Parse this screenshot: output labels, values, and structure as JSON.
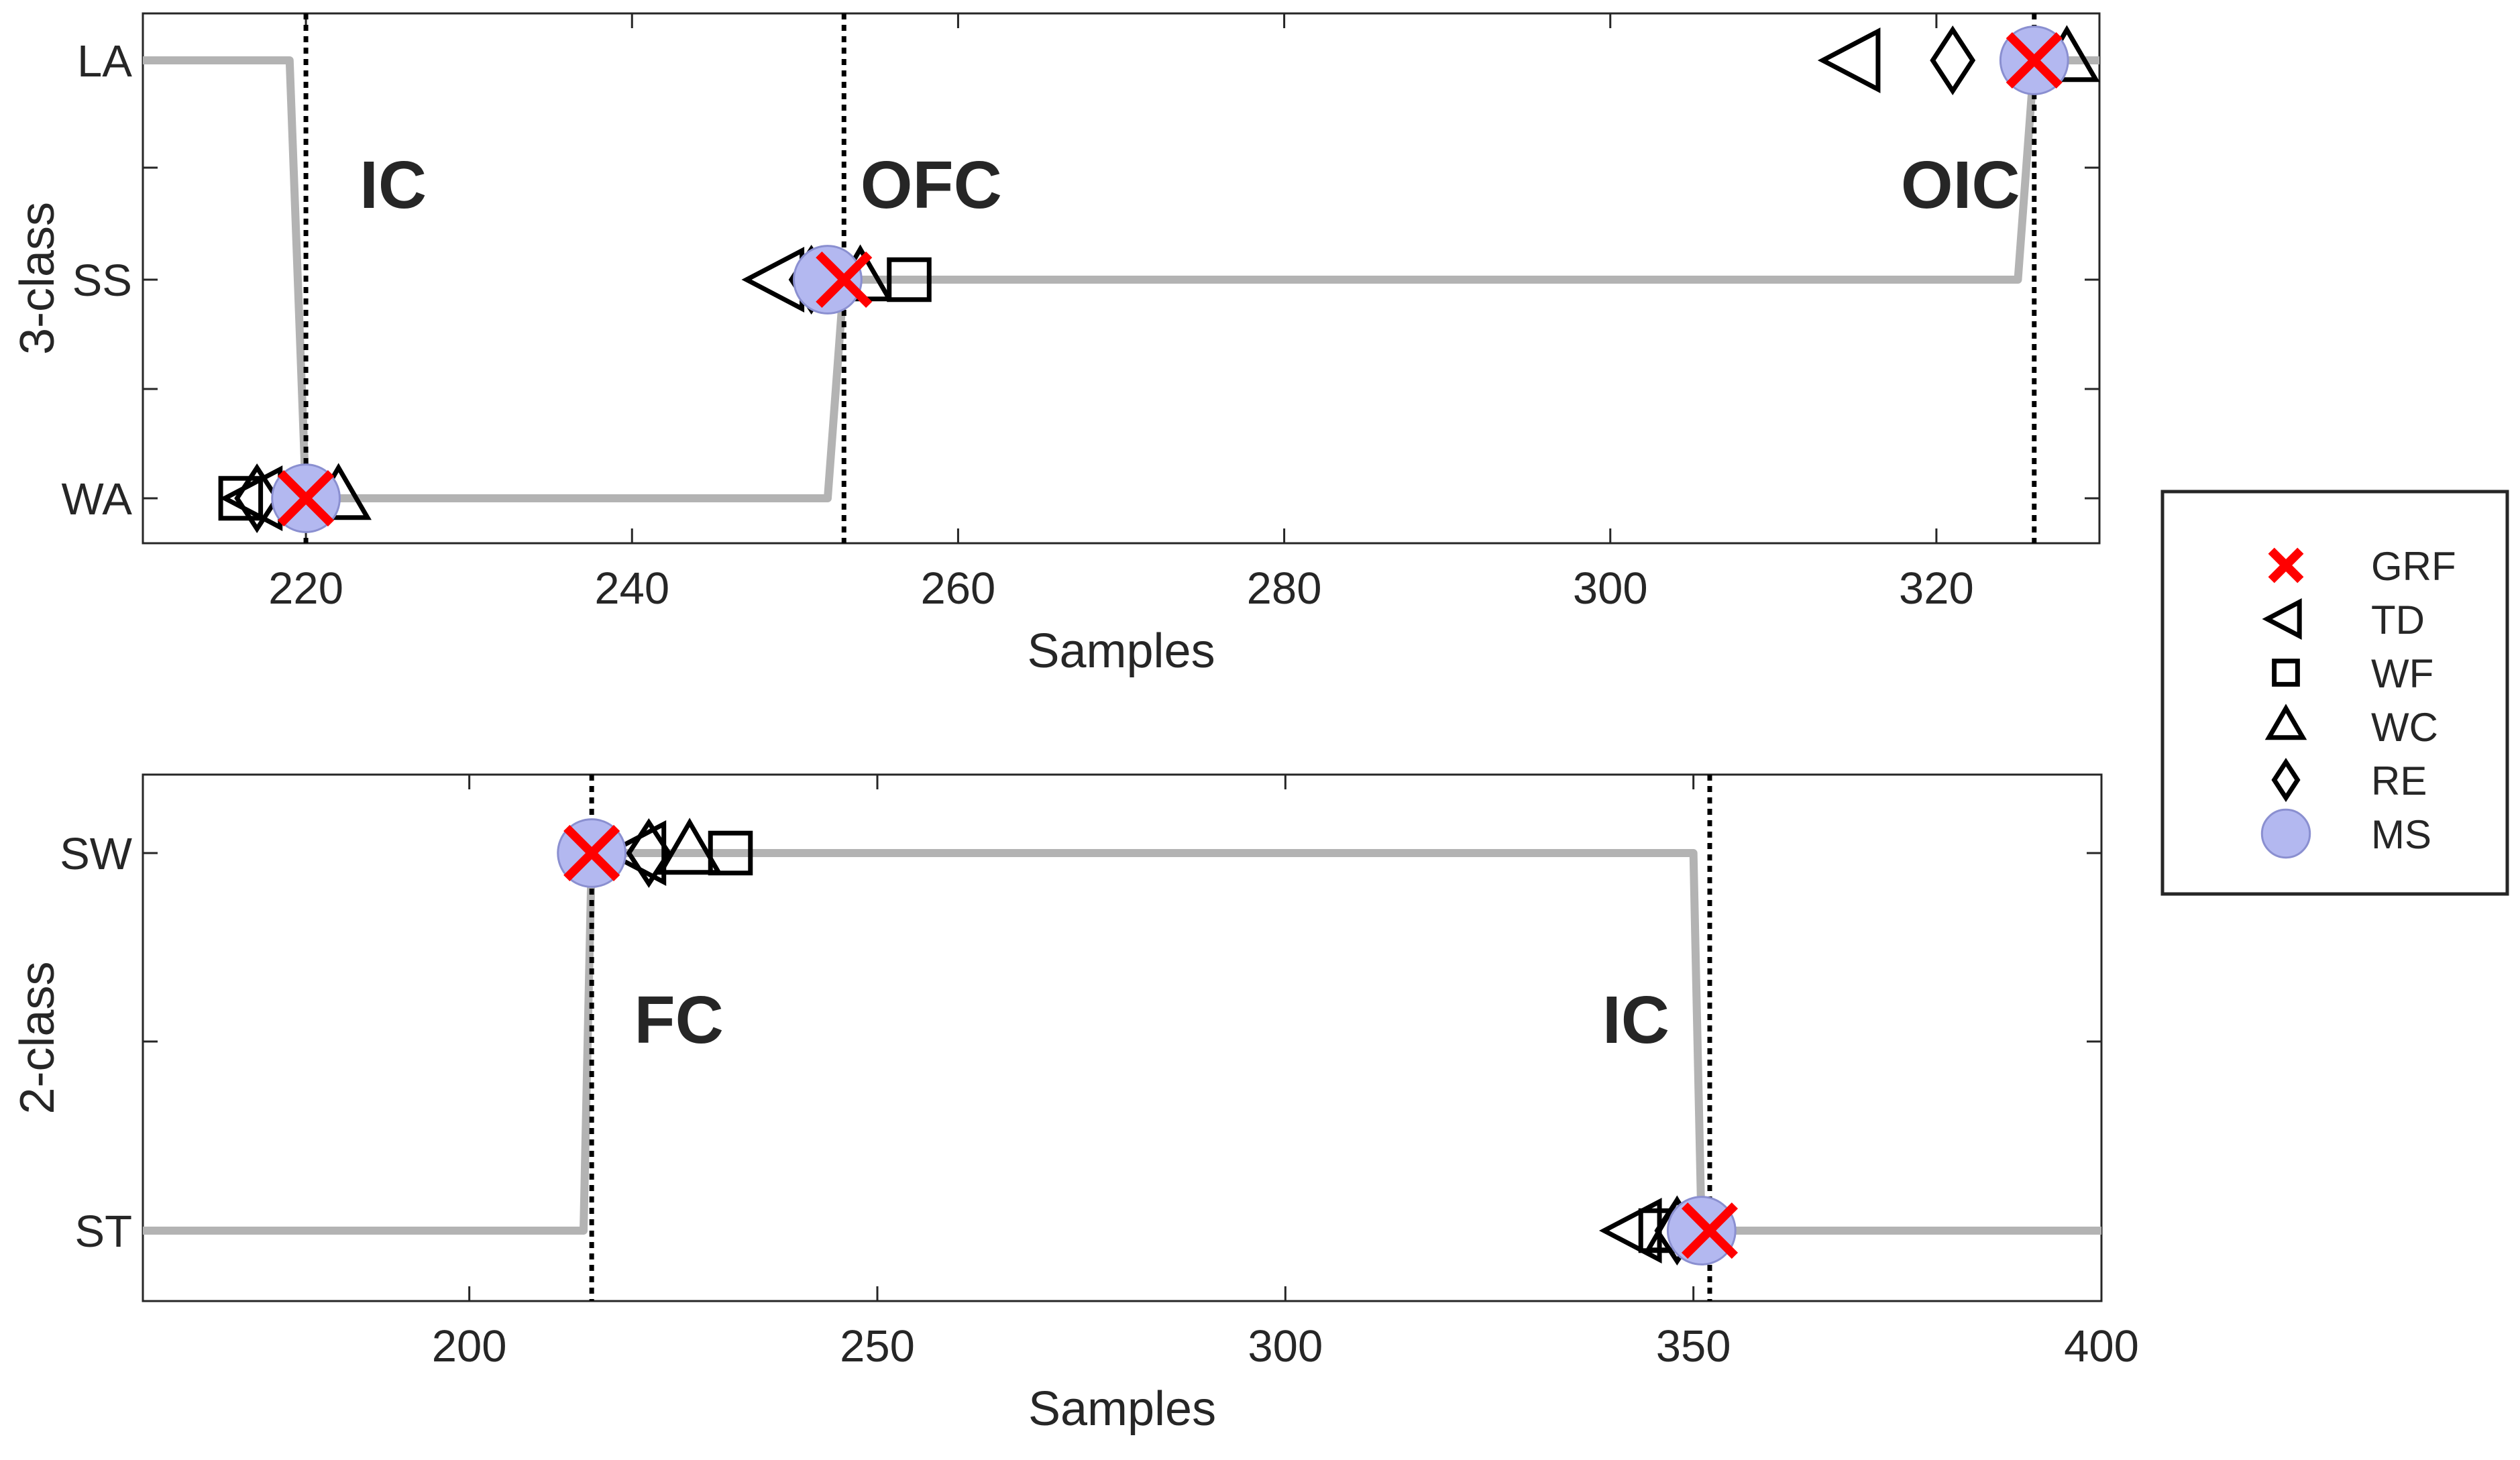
{
  "chart_data": [
    {
      "type": "line",
      "ylabel": "3-class",
      "xlabel": "Samples",
      "xlim": [
        210,
        330
      ],
      "xticks": [
        220,
        240,
        260,
        280,
        300,
        320
      ],
      "yticks": [
        {
          "label": "LA",
          "value": 3
        },
        {
          "label": "SS",
          "value": 2
        },
        {
          "label": "WA",
          "value": 1
        }
      ],
      "series": [
        {
          "x": [
            210,
            219,
            220,
            252,
            253,
            325,
            326,
            330
          ],
          "y": [
            3,
            3,
            1,
            1,
            2,
            2,
            3,
            3
          ]
        }
      ],
      "events": [
        {
          "label": "IC",
          "x": 220
        },
        {
          "label": "OFC",
          "x": 253
        },
        {
          "label": "OIC",
          "x": 326
        }
      ],
      "markers": [
        {
          "method": "MS",
          "x": 220,
          "y": 1
        },
        {
          "method": "GRF",
          "x": 220,
          "y": 1
        },
        {
          "method": "TD",
          "x": 217,
          "y": 1
        },
        {
          "method": "WF",
          "x": 216,
          "y": 1
        },
        {
          "method": "WC",
          "x": 222,
          "y": 1
        },
        {
          "method": "RE",
          "x": 217,
          "y": 1
        },
        {
          "method": "MS",
          "x": 252,
          "y": 2
        },
        {
          "method": "GRF",
          "x": 253,
          "y": 2
        },
        {
          "method": "TD",
          "x": 249,
          "y": 2
        },
        {
          "method": "WF",
          "x": 257,
          "y": 2
        },
        {
          "method": "WC",
          "x": 254,
          "y": 2
        },
        {
          "method": "RE",
          "x": 251,
          "y": 2
        },
        {
          "method": "MS",
          "x": 326,
          "y": 3
        },
        {
          "method": "GRF",
          "x": 326,
          "y": 3
        },
        {
          "method": "TD",
          "x": 315,
          "y": 3
        },
        {
          "method": "WF",
          "x": 326,
          "y": 3
        },
        {
          "method": "WC",
          "x": 328,
          "y": 3
        },
        {
          "method": "RE",
          "x": 321,
          "y": 3
        }
      ]
    },
    {
      "type": "line",
      "ylabel": "2-class",
      "xlabel": "Samples",
      "xlim": [
        160,
        400
      ],
      "xticks": [
        200,
        250,
        300,
        350,
        400
      ],
      "yticks": [
        {
          "label": "SW",
          "value": 2
        },
        {
          "label": "ST",
          "value": 1
        }
      ],
      "series": [
        {
          "x": [
            160,
            214,
            215,
            350,
            351,
            400
          ],
          "y": [
            1,
            1,
            2,
            2,
            1,
            1
          ]
        }
      ],
      "events": [
        {
          "label": "FC",
          "x": 215
        },
        {
          "label": "IC",
          "x": 352
        }
      ],
      "markers": [
        {
          "method": "MS",
          "x": 215,
          "y": 2
        },
        {
          "method": "GRF",
          "x": 215,
          "y": 2
        },
        {
          "method": "TD",
          "x": 221,
          "y": 2
        },
        {
          "method": "WF",
          "x": 232,
          "y": 2
        },
        {
          "method": "WC",
          "x": 227,
          "y": 2
        },
        {
          "method": "RE",
          "x": 222,
          "y": 2
        },
        {
          "method": "MS",
          "x": 351,
          "y": 1
        },
        {
          "method": "GRF",
          "x": 352,
          "y": 1
        },
        {
          "method": "TD",
          "x": 343,
          "y": 1
        },
        {
          "method": "WF",
          "x": 346,
          "y": 1
        },
        {
          "method": "WC",
          "x": 348,
          "y": 1
        },
        {
          "method": "RE",
          "x": 348,
          "y": 1
        }
      ]
    }
  ],
  "legend": {
    "placement": "right",
    "entries": [
      {
        "method": "GRF",
        "label": "GRF"
      },
      {
        "method": "TD",
        "label": "TD"
      },
      {
        "method": "WF",
        "label": "WF"
      },
      {
        "method": "WC",
        "label": "WC"
      },
      {
        "method": "RE",
        "label": "RE"
      },
      {
        "method": "MS",
        "label": "MS"
      }
    ]
  },
  "colors": {
    "signal_line": "#b3b3b3",
    "grf_marker": "#ff0000",
    "ms_marker_fill": "#b3b8f0",
    "ms_marker_edge": "#8a8fd0",
    "outline_marker": "#000000",
    "event_line": "#000000",
    "axis": "#262626"
  }
}
